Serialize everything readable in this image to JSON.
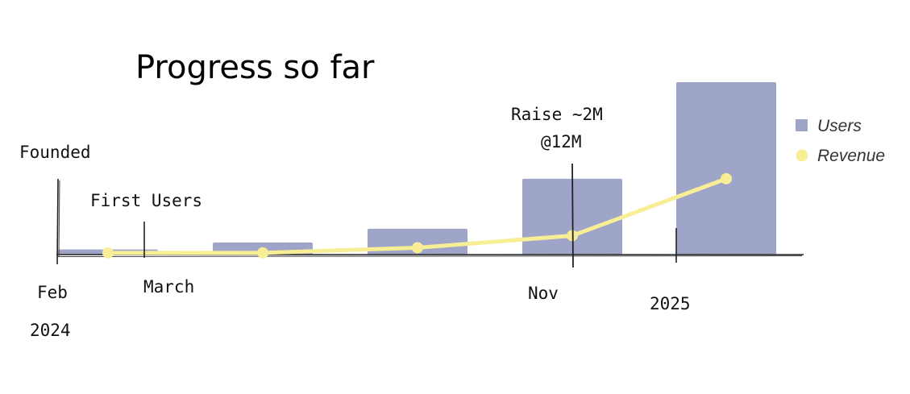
{
  "chart_data": {
    "type": "bar",
    "title": "Progress so far",
    "categories": [
      "",
      "",
      "",
      "",
      ""
    ],
    "series": [
      {
        "name": "Users",
        "type": "bar",
        "color": "#9ea5c8",
        "values": [
          3,
          7,
          15,
          44,
          100
        ]
      },
      {
        "name": "Revenue",
        "type": "line",
        "color": "#f8ee95",
        "values": [
          1,
          1,
          4,
          11,
          44
        ]
      }
    ],
    "ylim": [
      0,
      100
    ],
    "grid": false,
    "legend": "right",
    "annotations": {
      "founded": "Founded",
      "first_users": "First Users",
      "raise_line1": "Raise ~2M",
      "raise_line2": "@12M"
    },
    "timeline_labels": {
      "feb": "Feb",
      "year_2024": "2024",
      "march": "March",
      "nov": "Nov",
      "year_2025": "2025"
    }
  }
}
